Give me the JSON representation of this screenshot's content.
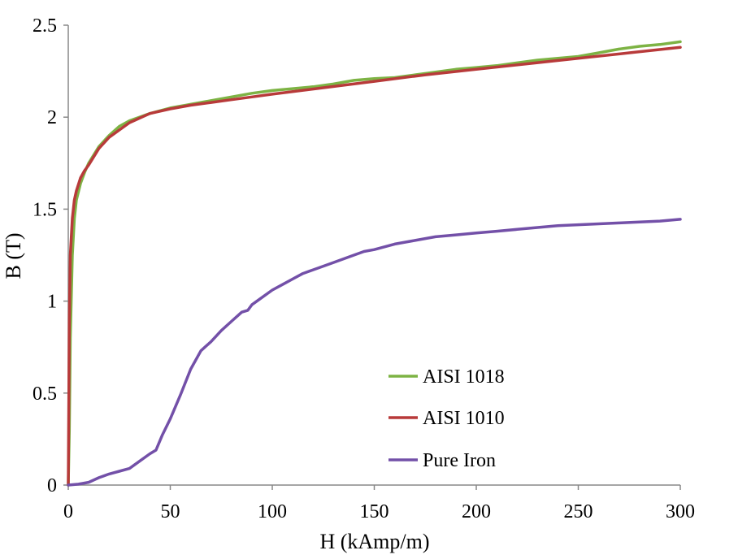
{
  "chart_data": {
    "type": "line",
    "title": "",
    "xlabel": "H (kAmp/m)",
    "ylabel": "B (T)",
    "xlim": [
      0,
      300
    ],
    "ylim": [
      0,
      2.5
    ],
    "xticks": [
      0,
      50,
      100,
      150,
      200,
      250,
      300
    ],
    "yticks": [
      0,
      0.5,
      1,
      1.5,
      2,
      2.5
    ],
    "xtick_labels": [
      "0",
      "50",
      "100",
      "150",
      "200",
      "250",
      "300"
    ],
    "ytick_labels": [
      "0",
      "0.5",
      "1",
      "1.5",
      "2",
      "2.5"
    ],
    "grid": false,
    "legend_position": "lower-right",
    "series": [
      {
        "name": "AISI 1018",
        "color": "#7db344",
        "x": [
          0,
          0.5,
          1,
          2,
          3,
          4,
          6,
          8,
          10,
          15,
          20,
          25,
          30,
          40,
          50,
          60,
          70,
          80,
          90,
          100,
          110,
          120,
          130,
          140,
          150,
          160,
          170,
          180,
          190,
          200,
          210,
          220,
          230,
          240,
          250,
          260,
          270,
          280,
          290,
          300
        ],
        "y": [
          0,
          0.3,
          0.8,
          1.25,
          1.45,
          1.55,
          1.64,
          1.7,
          1.75,
          1.84,
          1.9,
          1.95,
          1.98,
          2.02,
          2.05,
          2.07,
          2.09,
          2.11,
          2.13,
          2.145,
          2.155,
          2.165,
          2.18,
          2.2,
          2.21,
          2.215,
          2.23,
          2.245,
          2.26,
          2.27,
          2.28,
          2.295,
          2.31,
          2.32,
          2.33,
          2.35,
          2.37,
          2.385,
          2.395,
          2.41
        ]
      },
      {
        "name": "AISI 1010",
        "color": "#b83a3a",
        "x": [
          0,
          0.5,
          1,
          2,
          3,
          4,
          6,
          8,
          10,
          15,
          20,
          25,
          30,
          40,
          50,
          60,
          70,
          80,
          90,
          100,
          125,
          150,
          175,
          200,
          225,
          250,
          275,
          300
        ],
        "y": [
          0,
          0.9,
          1.25,
          1.45,
          1.55,
          1.6,
          1.67,
          1.71,
          1.74,
          1.83,
          1.89,
          1.93,
          1.97,
          2.02,
          2.045,
          2.065,
          2.08,
          2.095,
          2.11,
          2.125,
          2.16,
          2.195,
          2.23,
          2.26,
          2.29,
          2.32,
          2.35,
          2.38
        ]
      },
      {
        "name": "Pure Iron",
        "color": "#7350a8",
        "x": [
          0,
          5,
          10,
          15,
          20,
          25,
          30,
          35,
          40,
          43,
          46,
          50,
          55,
          60,
          65,
          70,
          75,
          80,
          85,
          88,
          90,
          95,
          100,
          105,
          110,
          115,
          120,
          125,
          130,
          140,
          145,
          150,
          160,
          170,
          180,
          190,
          200,
          210,
          220,
          230,
          240,
          250,
          260,
          270,
          280,
          290,
          300
        ],
        "y": [
          0,
          0.005,
          0.015,
          0.04,
          0.06,
          0.075,
          0.09,
          0.13,
          0.17,
          0.19,
          0.27,
          0.36,
          0.49,
          0.63,
          0.73,
          0.78,
          0.84,
          0.89,
          0.94,
          0.95,
          0.98,
          1.02,
          1.06,
          1.09,
          1.12,
          1.15,
          1.17,
          1.19,
          1.21,
          1.25,
          1.27,
          1.28,
          1.31,
          1.33,
          1.35,
          1.36,
          1.37,
          1.38,
          1.39,
          1.4,
          1.41,
          1.415,
          1.42,
          1.425,
          1.43,
          1.435,
          1.445
        ]
      }
    ]
  }
}
